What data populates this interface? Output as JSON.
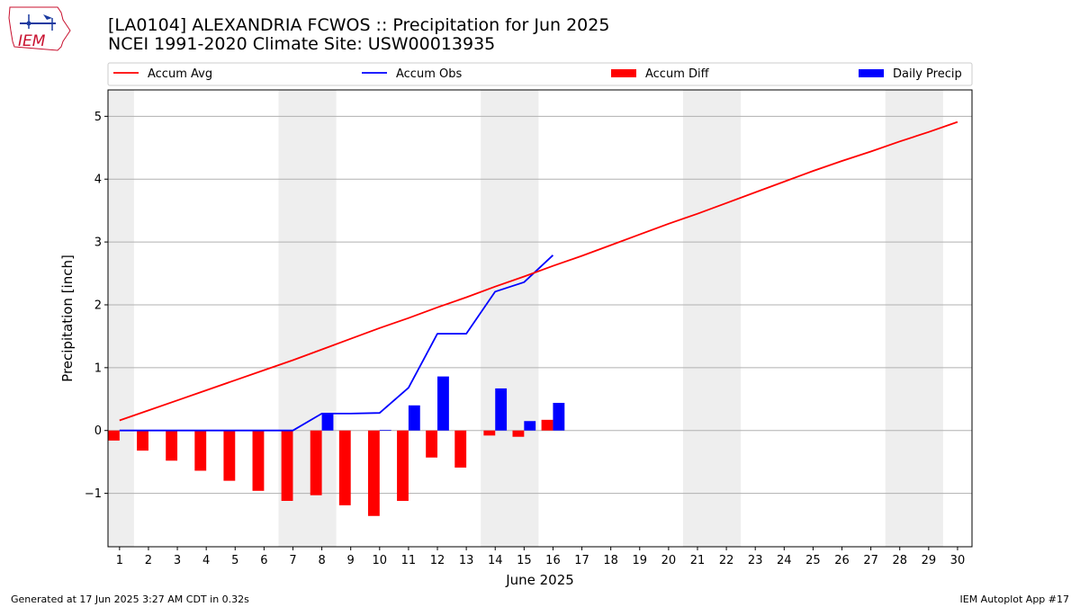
{
  "header": {
    "title_line1": "[LA0104] ALEXANDRIA FCWOS :: Precipitation for Jun 2025",
    "title_line2": "NCEI 1991-2020 Climate Site: USW00013935",
    "logo_text": "IEM"
  },
  "footer": {
    "generated": "Generated at 17 Jun 2025 3:27 AM CDT in 0.32s",
    "app": "IEM Autoplot App #17"
  },
  "colors": {
    "accum_avg": "#ff0000",
    "accum_obs": "#0000ff",
    "accum_diff": "#ff0000",
    "daily_precip": "#0000ff",
    "weekend_shade": "#eeeeee",
    "grid": "#b0b0b0"
  },
  "chart_data": {
    "type": "bar",
    "xlabel": "June 2025",
    "ylabel": "Precipitation [inch]",
    "ylim": [
      -1.85,
      5.42
    ],
    "yticks": [
      -1,
      0,
      1,
      2,
      3,
      4,
      5
    ],
    "ytick_labels": [
      "−1",
      "0",
      "1",
      "2",
      "3",
      "4",
      "5"
    ],
    "days": [
      1,
      2,
      3,
      4,
      5,
      6,
      7,
      8,
      9,
      10,
      11,
      12,
      13,
      14,
      15,
      16,
      17,
      18,
      19,
      20,
      21,
      22,
      23,
      24,
      25,
      26,
      27,
      28,
      29,
      30
    ],
    "grid": "horizontal",
    "legend_position": "top",
    "weekend_ranges": [
      [
        1,
        1
      ],
      [
        7,
        8
      ],
      [
        14,
        15
      ],
      [
        21,
        22
      ],
      [
        28,
        29
      ]
    ],
    "series": [
      {
        "name": "Accum Avg",
        "kind": "line",
        "days": [
          1,
          2,
          3,
          4,
          5,
          6,
          7,
          8,
          9,
          10,
          11,
          12,
          13,
          14,
          15,
          16,
          17,
          18,
          19,
          20,
          21,
          22,
          23,
          24,
          25,
          26,
          27,
          28,
          29,
          30
        ],
        "values": [
          0.16,
          0.32,
          0.48,
          0.64,
          0.8,
          0.96,
          1.12,
          1.29,
          1.46,
          1.63,
          1.79,
          1.96,
          2.12,
          2.29,
          2.45,
          2.62,
          2.78,
          2.95,
          3.12,
          3.29,
          3.45,
          3.62,
          3.79,
          3.96,
          4.13,
          4.29,
          4.44,
          4.6,
          4.75,
          4.91
        ]
      },
      {
        "name": "Accum Obs",
        "kind": "line",
        "days": [
          1,
          2,
          3,
          4,
          5,
          6,
          7,
          8,
          9,
          10,
          11,
          12,
          13,
          14,
          15,
          16
        ],
        "values": [
          0.0,
          0.0,
          0.0,
          0.0,
          0.0,
          0.0,
          0.0,
          0.27,
          0.27,
          0.28,
          0.68,
          1.54,
          1.54,
          2.21,
          2.36,
          2.79
        ]
      },
      {
        "name": "Accum Diff",
        "kind": "bar",
        "days": [
          1,
          2,
          3,
          4,
          5,
          6,
          7,
          8,
          9,
          10,
          11,
          12,
          13,
          14,
          15,
          16
        ],
        "values": [
          -0.16,
          -0.32,
          -0.48,
          -0.64,
          -0.8,
          -0.96,
          -1.12,
          -1.03,
          -1.19,
          -1.36,
          -1.12,
          -0.43,
          -0.59,
          -0.08,
          -0.1,
          0.17
        ]
      },
      {
        "name": "Daily Precip",
        "kind": "bar",
        "days": [
          1,
          2,
          3,
          4,
          5,
          6,
          7,
          8,
          9,
          10,
          11,
          12,
          13,
          14,
          15,
          16
        ],
        "values": [
          0,
          0,
          0,
          0,
          0,
          0,
          0,
          0.27,
          0,
          0.01,
          0.4,
          0.86,
          0,
          0.67,
          0.15,
          0.44
        ]
      }
    ]
  }
}
